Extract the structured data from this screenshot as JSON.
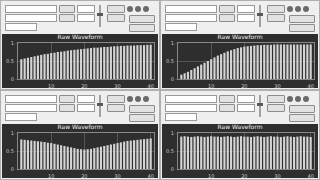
{
  "chart_data": [
    {
      "type": "bar",
      "title": "Raw Waveform",
      "color": "#d4d4d4",
      "grid": true,
      "x": [
        1,
        2,
        3,
        4,
        5,
        6,
        7,
        8,
        9,
        10,
        11,
        12,
        13,
        14,
        15,
        16,
        17,
        18,
        19,
        20,
        21,
        22,
        23,
        24,
        25,
        26,
        27,
        28,
        29,
        30,
        31,
        32,
        33,
        34,
        35,
        36,
        37,
        38,
        39,
        40
      ],
      "values": [
        0.55,
        0.57,
        0.59,
        0.61,
        0.63,
        0.65,
        0.67,
        0.69,
        0.7,
        0.72,
        0.73,
        0.75,
        0.76,
        0.77,
        0.79,
        0.8,
        0.81,
        0.82,
        0.83,
        0.84,
        0.85,
        0.86,
        0.87,
        0.87,
        0.88,
        0.89,
        0.89,
        0.9,
        0.91,
        0.91,
        0.92,
        0.92,
        0.93,
        0.93,
        0.93,
        0.94,
        0.94,
        0.94,
        0.95,
        0.95
      ],
      "xlim": [
        0,
        41
      ],
      "xticks": [
        10,
        20,
        30,
        40
      ],
      "ylim": [
        0,
        1
      ],
      "yticks": [
        0,
        0.5,
        1
      ]
    },
    {
      "type": "bar",
      "title": "Raw Waveform",
      "color": "#d4d4d4",
      "grid": true,
      "x": [
        1,
        2,
        3,
        4,
        5,
        6,
        7,
        8,
        9,
        10,
        11,
        12,
        13,
        14,
        15,
        16,
        17,
        18,
        19,
        20,
        21,
        22,
        23,
        24,
        25,
        26,
        27,
        28,
        29,
        30,
        31,
        32,
        33,
        34,
        35,
        36,
        37,
        38,
        39,
        40
      ],
      "values": [
        0.12,
        0.16,
        0.2,
        0.25,
        0.3,
        0.35,
        0.4,
        0.45,
        0.5,
        0.55,
        0.6,
        0.65,
        0.69,
        0.73,
        0.77,
        0.8,
        0.83,
        0.86,
        0.88,
        0.9,
        0.91,
        0.92,
        0.93,
        0.94,
        0.94,
        0.95,
        0.95,
        0.95,
        0.96,
        0.96,
        0.96,
        0.96,
        0.96,
        0.96,
        0.96,
        0.96,
        0.96,
        0.96,
        0.96,
        0.96
      ],
      "xlim": [
        0,
        41
      ],
      "xticks": [
        10,
        20,
        30,
        40
      ],
      "ylim": [
        0,
        1
      ],
      "yticks": [
        0,
        0.5,
        1
      ]
    },
    {
      "type": "bar",
      "title": "Raw Waveform",
      "color": "#d4d4d4",
      "grid": true,
      "x": [
        1,
        2,
        3,
        4,
        5,
        6,
        7,
        8,
        9,
        10,
        11,
        12,
        13,
        14,
        15,
        16,
        17,
        18,
        19,
        20,
        21,
        22,
        23,
        24,
        25,
        26,
        27,
        28,
        29,
        30,
        31,
        32,
        33,
        34,
        35,
        36,
        37,
        38,
        39,
        40
      ],
      "values": [
        0.82,
        0.81,
        0.8,
        0.79,
        0.78,
        0.77,
        0.76,
        0.75,
        0.73,
        0.72,
        0.7,
        0.68,
        0.66,
        0.64,
        0.62,
        0.6,
        0.58,
        0.56,
        0.55,
        0.54,
        0.55,
        0.56,
        0.58,
        0.6,
        0.62,
        0.64,
        0.66,
        0.68,
        0.7,
        0.72,
        0.74,
        0.76,
        0.78,
        0.79,
        0.8,
        0.81,
        0.82,
        0.83,
        0.84,
        0.85
      ],
      "xlim": [
        0,
        41
      ],
      "xticks": [
        10,
        20,
        30,
        40
      ],
      "ylim": [
        0,
        1
      ],
      "yticks": [
        0,
        0.5,
        1
      ]
    },
    {
      "type": "bar",
      "title": "Raw Waveform",
      "color": "#d4d4d4",
      "grid": true,
      "x": [
        1,
        2,
        3,
        4,
        5,
        6,
        7,
        8,
        9,
        10,
        11,
        12,
        13,
        14,
        15,
        16,
        17,
        18,
        19,
        20,
        21,
        22,
        23,
        24,
        25,
        26,
        27,
        28,
        29,
        30,
        31,
        32,
        33,
        34,
        35,
        36,
        37,
        38,
        39,
        40
      ],
      "values": [
        0.9,
        0.91,
        0.9,
        0.89,
        0.9,
        0.91,
        0.9,
        0.89,
        0.9,
        0.91,
        0.9,
        0.9,
        0.89,
        0.9,
        0.91,
        0.9,
        0.89,
        0.9,
        0.91,
        0.9,
        0.9,
        0.89,
        0.9,
        0.91,
        0.9,
        0.89,
        0.9,
        0.91,
        0.9,
        0.9,
        0.89,
        0.9,
        0.91,
        0.9,
        0.89,
        0.9,
        0.91,
        0.9,
        0.9,
        0.89
      ],
      "xlim": [
        0,
        41
      ],
      "xticks": [
        10,
        20,
        30,
        40
      ],
      "ylim": [
        0,
        1
      ],
      "yticks": [
        0,
        0.5,
        1
      ]
    }
  ]
}
